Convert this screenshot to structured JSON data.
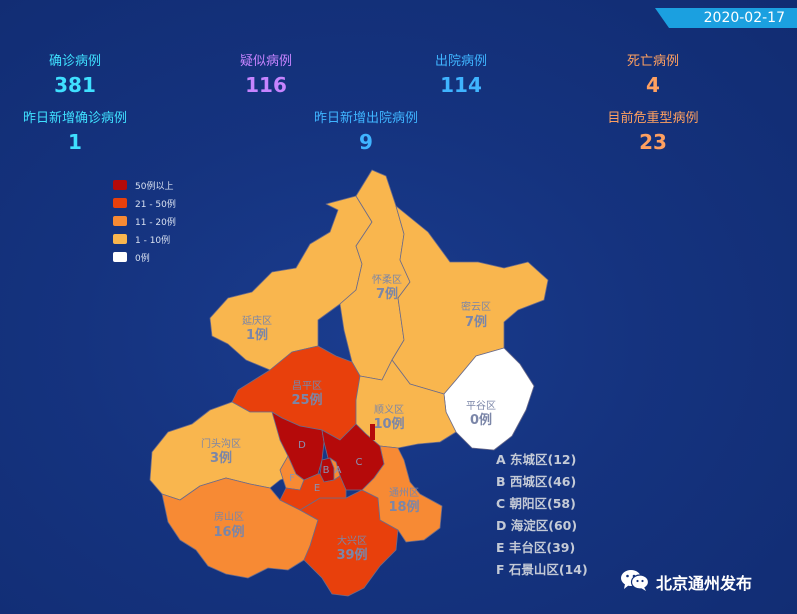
{
  "date": "2020-02-17",
  "stats": [
    {
      "label": "确诊病例",
      "value": "381",
      "color": "#3fe0ff"
    },
    {
      "label": "疑似病例",
      "value": "116",
      "color": "#c684ff"
    },
    {
      "label": "出院病例",
      "value": "114",
      "color": "#3fb4ff"
    },
    {
      "label": "死亡病例",
      "value": "4",
      "color": "#ffa060"
    },
    {
      "label": "昨日新增确诊病例",
      "value": "1",
      "color": "#3fe0ff"
    },
    {
      "label": "昨日新增出院病例",
      "value": "9",
      "color": "#3fb4ff"
    },
    {
      "label": "目前危重型病例",
      "value": "23",
      "color": "#ffa060"
    }
  ],
  "legend": [
    {
      "label": "50例以上",
      "color": "#b50a0a"
    },
    {
      "label": "21 - 50例",
      "color": "#e8400c"
    },
    {
      "label": "11 - 20例",
      "color": "#f78a34"
    },
    {
      "label": "1 - 10例",
      "color": "#f9b64e"
    },
    {
      "label": "0例",
      "color": "#ffffff"
    }
  ],
  "districts": [
    {
      "name": "怀柔区",
      "count": "7例"
    },
    {
      "name": "密云区",
      "count": "7例"
    },
    {
      "name": "延庆区",
      "count": "1例"
    },
    {
      "name": "昌平区",
      "count": "25例"
    },
    {
      "name": "平谷区",
      "count": "0例"
    },
    {
      "name": "顺义区",
      "count": "10例"
    },
    {
      "name": "门头沟区",
      "count": "3例"
    },
    {
      "name": "通州区",
      "count": "18例"
    },
    {
      "name": "房山区",
      "count": "16例"
    },
    {
      "name": "大兴区",
      "count": "39例"
    }
  ],
  "map_letters": {
    "a": "A",
    "b": "B",
    "c": "C",
    "d": "D",
    "e": "E",
    "f": "F"
  },
  "core_list": [
    "A 东城区(12)",
    "B 西城区(46)",
    "C 朝阳区(58)",
    "D 海淀区(60)",
    "E 丰台区(39)",
    "F 石景山区(14)"
  ],
  "brand": {
    "icon": "wechat-icon",
    "title": "北京通州发布"
  }
}
